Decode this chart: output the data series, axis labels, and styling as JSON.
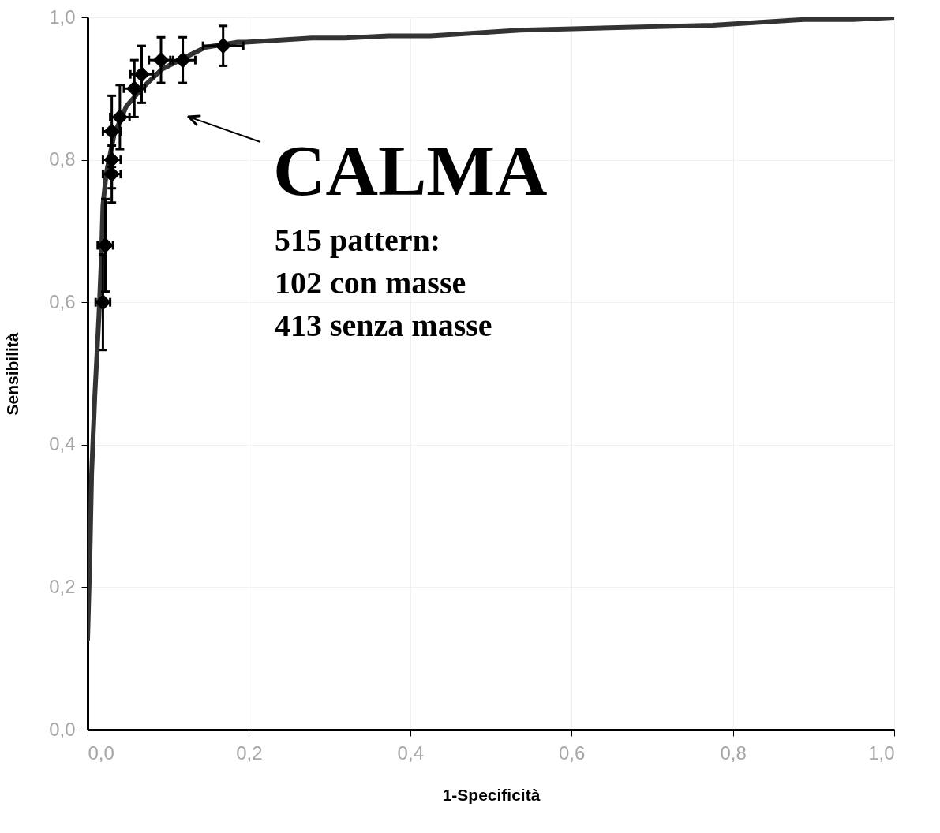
{
  "chart_data": {
    "type": "line",
    "xlabel": "1-Specificità",
    "ylabel": "Sensibilità",
    "xlim": [
      0,
      1
    ],
    "ylim": [
      0,
      1
    ],
    "xticks": [
      {
        "value": 0,
        "label": "0,0"
      },
      {
        "value": 0.2,
        "label": "0,2"
      },
      {
        "value": 0.4,
        "label": "0,4"
      },
      {
        "value": 0.6,
        "label": "0,6"
      },
      {
        "value": 0.8,
        "label": "0,8"
      },
      {
        "value": 1,
        "label": "1,0"
      }
    ],
    "yticks": [
      {
        "value": 0,
        "label": "0,0"
      },
      {
        "value": 0.2,
        "label": "0,2"
      },
      {
        "value": 0.4,
        "label": "0,4"
      },
      {
        "value": 0.6,
        "label": "0,6"
      },
      {
        "value": 0.8,
        "label": "0,8"
      },
      {
        "value": 1,
        "label": "1,0"
      }
    ],
    "grid": true,
    "series": [
      {
        "color": "#333333",
        "marker": "none",
        "line_style": "solid",
        "x": [
          0,
          0.003,
          0.005,
          0.009,
          0.014,
          0.017,
          0.019,
          0.023,
          0.033,
          0.048,
          0.067,
          0.092,
          0.116,
          0.146,
          0.185,
          0.196,
          0.278,
          0.319,
          0.373,
          0.425,
          0.536,
          0.775,
          0.889,
          0.949,
          1.0
        ],
        "values": [
          0.127,
          0.25,
          0.36,
          0.47,
          0.58,
          0.66,
          0.736,
          0.78,
          0.836,
          0.875,
          0.9,
          0.927,
          0.941,
          0.958,
          0.965,
          0.965,
          0.971,
          0.971,
          0.974,
          0.974,
          0.982,
          0.989,
          0.997,
          0.997,
          1.0
        ]
      },
      {
        "type": "scatter",
        "color": "#000000",
        "marker": "diamond",
        "x": [
          0.019,
          0.022,
          0.03,
          0.03,
          0.03,
          0.04,
          0.058,
          0.067,
          0.091,
          0.118,
          0.168
        ],
        "values": [
          0.6,
          0.68,
          0.78,
          0.8,
          0.84,
          0.86,
          0.9,
          0.92,
          0.94,
          0.94,
          0.96
        ],
        "errors": [
          0.067,
          0.065,
          0.04,
          0.04,
          0.05,
          0.045,
          0.04,
          0.04,
          0.032,
          0.032,
          0.028
        ],
        "xerrors": [
          0.009,
          0.0095,
          0.011,
          0.011,
          0.011,
          0.012,
          0.013,
          0.014,
          0.015,
          0.0155,
          0.025
        ]
      }
    ],
    "annotations": [
      "CALMA",
      "515 pattern:",
      "102 con masse",
      "413 senza masse"
    ]
  }
}
